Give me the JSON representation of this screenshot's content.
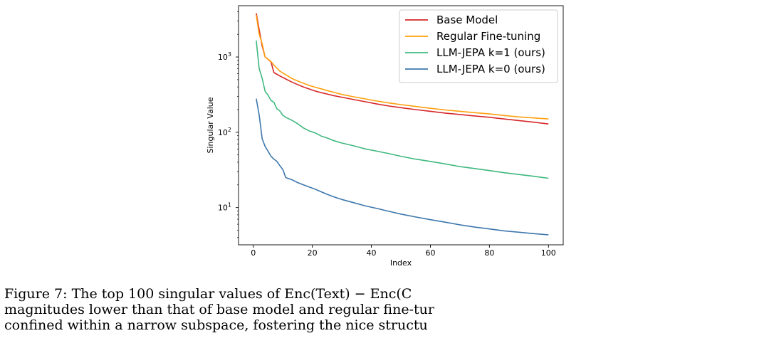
{
  "chart_data": {
    "type": "line",
    "xlabel": "Index",
    "ylabel": "Singular Value",
    "xlim": [
      -5,
      105
    ],
    "ylim": [
      3.2,
      4800
    ],
    "yscale": "log",
    "grid": false,
    "legend_position": "top-right",
    "xticks": [
      0,
      20,
      40,
      60,
      80,
      100
    ],
    "yticks": [
      {
        "value": 10,
        "base": "10",
        "exp": "1"
      },
      {
        "value": 100,
        "base": "10",
        "exp": "2"
      },
      {
        "value": 1000,
        "base": "10",
        "exp": "3"
      }
    ],
    "series": [
      {
        "name": "Base Model",
        "color": "#d62728",
        "points": [
          [
            1,
            3800
          ],
          [
            2,
            2300
          ],
          [
            3,
            1400
          ],
          [
            4,
            1000
          ],
          [
            5,
            930
          ],
          [
            6,
            860
          ],
          [
            7,
            620
          ],
          [
            9,
            560
          ],
          [
            11,
            510
          ],
          [
            13,
            465
          ],
          [
            15,
            430
          ],
          [
            17,
            400
          ],
          [
            19,
            375
          ],
          [
            21,
            352
          ],
          [
            23,
            336
          ],
          [
            25,
            322
          ],
          [
            27,
            308
          ],
          [
            30,
            292
          ],
          [
            34,
            272
          ],
          [
            38,
            254
          ],
          [
            42,
            237
          ],
          [
            46,
            223
          ],
          [
            50,
            212
          ],
          [
            55,
            200
          ],
          [
            60,
            190
          ],
          [
            65,
            180
          ],
          [
            70,
            172
          ],
          [
            75,
            165
          ],
          [
            80,
            158
          ],
          [
            85,
            150
          ],
          [
            90,
            143
          ],
          [
            95,
            136
          ],
          [
            100,
            129
          ]
        ]
      },
      {
        "name": "Regular Fine-tuning",
        "color": "#ff9f0e",
        "points": [
          [
            1,
            3600
          ],
          [
            2,
            2000
          ],
          [
            3,
            1500
          ],
          [
            4,
            1000
          ],
          [
            5,
            930
          ],
          [
            6,
            870
          ],
          [
            7,
            780
          ],
          [
            9,
            650
          ],
          [
            11,
            580
          ],
          [
            13,
            520
          ],
          [
            15,
            480
          ],
          [
            17,
            448
          ],
          [
            19,
            418
          ],
          [
            21,
            396
          ],
          [
            23,
            378
          ],
          [
            25,
            358
          ],
          [
            27,
            342
          ],
          [
            30,
            318
          ],
          [
            34,
            296
          ],
          [
            38,
            277
          ],
          [
            42,
            260
          ],
          [
            46,
            245
          ],
          [
            50,
            233
          ],
          [
            55,
            220
          ],
          [
            60,
            208
          ],
          [
            65,
            198
          ],
          [
            70,
            190
          ],
          [
            75,
            182
          ],
          [
            80,
            175
          ],
          [
            85,
            167
          ],
          [
            90,
            160
          ],
          [
            95,
            155
          ],
          [
            100,
            150
          ]
        ]
      },
      {
        "name": "LLM-JEPA k=1 (ours)",
        "color": "#3fb87f",
        "points": [
          [
            1,
            1650
          ],
          [
            2,
            700
          ],
          [
            3,
            520
          ],
          [
            4,
            350
          ],
          [
            5,
            310
          ],
          [
            6,
            265
          ],
          [
            7,
            250
          ],
          [
            8,
            205
          ],
          [
            9,
            192
          ],
          [
            10,
            168
          ],
          [
            11,
            158
          ],
          [
            13,
            145
          ],
          [
            15,
            130
          ],
          [
            17,
            114
          ],
          [
            19,
            104
          ],
          [
            21,
            98
          ],
          [
            23,
            89
          ],
          [
            25,
            84
          ],
          [
            27,
            78
          ],
          [
            30,
            72
          ],
          [
            34,
            66
          ],
          [
            38,
            60
          ],
          [
            42,
            56
          ],
          [
            46,
            52
          ],
          [
            50,
            48
          ],
          [
            55,
            44
          ],
          [
            60,
            41
          ],
          [
            65,
            38
          ],
          [
            70,
            35
          ],
          [
            75,
            33
          ],
          [
            80,
            31
          ],
          [
            85,
            29
          ],
          [
            90,
            27.5
          ],
          [
            95,
            26
          ],
          [
            100,
            24.5
          ]
        ]
      },
      {
        "name": "LLM-JEPA k=0 (ours)",
        "color": "#3d77ad",
        "points": [
          [
            1,
            280
          ],
          [
            2,
            170
          ],
          [
            3,
            82
          ],
          [
            4,
            65
          ],
          [
            5,
            56
          ],
          [
            6,
            48
          ],
          [
            7,
            44
          ],
          [
            8,
            41
          ],
          [
            9,
            36
          ],
          [
            10,
            32
          ],
          [
            11,
            25
          ],
          [
            13,
            23.5
          ],
          [
            15,
            21.5
          ],
          [
            17,
            20
          ],
          [
            19,
            18.7
          ],
          [
            21,
            17.5
          ],
          [
            23,
            16.2
          ],
          [
            25,
            15
          ],
          [
            27,
            14
          ],
          [
            30,
            12.8
          ],
          [
            34,
            11.6
          ],
          [
            38,
            10.5
          ],
          [
            42,
            9.7
          ],
          [
            46,
            8.9
          ],
          [
            50,
            8.2
          ],
          [
            55,
            7.5
          ],
          [
            60,
            6.9
          ],
          [
            65,
            6.4
          ],
          [
            70,
            5.9
          ],
          [
            75,
            5.5
          ],
          [
            80,
            5.2
          ],
          [
            85,
            4.9
          ],
          [
            90,
            4.7
          ],
          [
            95,
            4.5
          ],
          [
            100,
            4.35
          ]
        ]
      }
    ]
  },
  "caption": {
    "line1_label": "Figure 7: ",
    "line1_text": "The top 100 singular values of Enc(Text) − Enc(C",
    "line2_text": "magnitudes lower than that of base model and regular fine-tur",
    "line3_text": "confined within a narrow subspace, fostering the nice structu"
  }
}
